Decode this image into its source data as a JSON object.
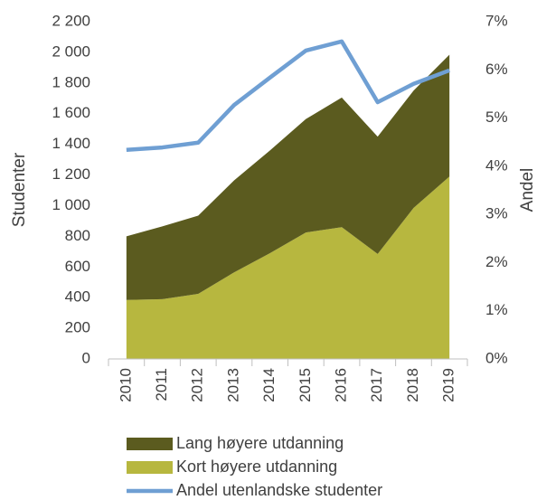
{
  "chart_data": {
    "type": "area",
    "categories": [
      "2010",
      "2011",
      "2012",
      "2013",
      "2014",
      "2015",
      "2016",
      "2017",
      "2018",
      "2019"
    ],
    "series": [
      {
        "name": "Lang høyere utdanning",
        "type": "area",
        "color": "#5b5b1f",
        "values": [
          415,
          475,
          510,
          600,
          670,
          740,
          845,
          765,
          765,
          795
        ]
      },
      {
        "name": "Kort høyere utdanning",
        "type": "area",
        "color": "#b7b73f",
        "values": [
          385,
          390,
          425,
          565,
          690,
          825,
          860,
          685,
          985,
          1190
        ]
      },
      {
        "name": "Andel utenlandske studenter",
        "type": "line",
        "axis": "y2",
        "color": "#6f9fd3",
        "values": [
          4.34,
          4.39,
          4.49,
          5.27,
          5.84,
          6.4,
          6.59,
          5.33,
          5.71,
          5.99
        ]
      }
    ],
    "ylabel": "Studenter",
    "y2label": "Andel",
    "ylim": [
      0,
      2200
    ],
    "yticks": [
      0,
      200,
      400,
      600,
      800,
      {
        "value": 1000,
        "label": "1 000"
      },
      {
        "value": 1200,
        "label": "1 200"
      },
      {
        "value": 1400,
        "label": "1 400"
      },
      {
        "value": 1600,
        "label": "1 600"
      },
      {
        "value": 1800,
        "label": "1 800"
      },
      {
        "value": 2000,
        "label": "2 000"
      },
      {
        "value": 2200,
        "label": "2 200"
      }
    ],
    "y2lim": [
      0,
      7
    ],
    "y2ticks": [
      {
        "value": 0,
        "label": "0%"
      },
      {
        "value": 1,
        "label": "1%"
      },
      {
        "value": 2,
        "label": "2%"
      },
      {
        "value": 3,
        "label": "3%"
      },
      {
        "value": 4,
        "label": "4%"
      },
      {
        "value": 5,
        "label": "5%"
      },
      {
        "value": 6,
        "label": "6%"
      },
      {
        "value": 7,
        "label": "7%"
      }
    ],
    "grid": false,
    "legend": "bottom"
  }
}
